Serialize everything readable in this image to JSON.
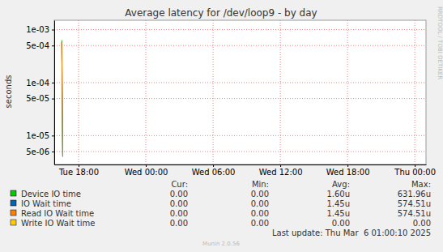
{
  "chart_data": {
    "type": "line",
    "title": "Average latency for /dev/loop9 - by day",
    "y_label": "seconds",
    "log": "y",
    "grid": true,
    "x": [
      16.42,
      16.5,
      16.58,
      16.67
    ],
    "xlim": [
      15.83,
      49
    ],
    "xticks": [
      {
        "value": 18,
        "label": "Tue 18:00"
      },
      {
        "value": 24,
        "label": "Wed 00:00"
      },
      {
        "value": 30,
        "label": "Wed 06:00"
      },
      {
        "value": 36,
        "label": "Wed 12:00"
      },
      {
        "value": 42,
        "label": "Wed 18:00"
      },
      {
        "value": 48,
        "label": "Thu 00:00"
      }
    ],
    "ylim": [
      2.85e-06,
      0.0015
    ],
    "yticks": [
      {
        "value": 5e-06,
        "label": "5e-06"
      },
      {
        "value": 1e-05,
        "label": "1e-05"
      },
      {
        "value": 5e-05,
        "label": "5e-05"
      },
      {
        "value": 0.0001,
        "label": "1e-04"
      },
      {
        "value": 0.0005,
        "label": "5e-04"
      },
      {
        "value": 0.001,
        "label": "1e-03"
      }
    ],
    "legend_columns": [
      "Cur:",
      "Min:",
      "Avg:",
      "Max:"
    ],
    "series": [
      {
        "name": "Device IO time",
        "color": "#00cc00",
        "values": [
          null,
          0.000632,
          4.5e-06,
          null
        ],
        "cur": "0.00",
        "min": "0.00",
        "avg": "1.60u",
        "max": "631.96u"
      },
      {
        "name": "IO Wait time",
        "color": "#0066b3",
        "values": [
          null,
          0.0005745,
          4e-06,
          null
        ],
        "cur": "0.00",
        "min": "0.00",
        "avg": "1.45u",
        "max": "574.51u"
      },
      {
        "name": "Read IO Wait time",
        "color": "#ff8000",
        "values": [
          null,
          0.0005745,
          4e-06,
          null
        ],
        "cur": "0.00",
        "min": "0.00",
        "avg": "1.45u",
        "max": "574.51u"
      },
      {
        "name": "Write IO Wait time",
        "color": "#ffcc00",
        "values": [
          null,
          null,
          null,
          null
        ],
        "cur": "0.00",
        "min": "0.00",
        "avg": "0.00",
        "max": "0.00"
      }
    ],
    "last_update": "Last update: Thu Mar  6 01:00:10 2025",
    "footer": "Munin 2.0.56",
    "side_text": "RRDTOOL / TOBI OETIKER"
  }
}
